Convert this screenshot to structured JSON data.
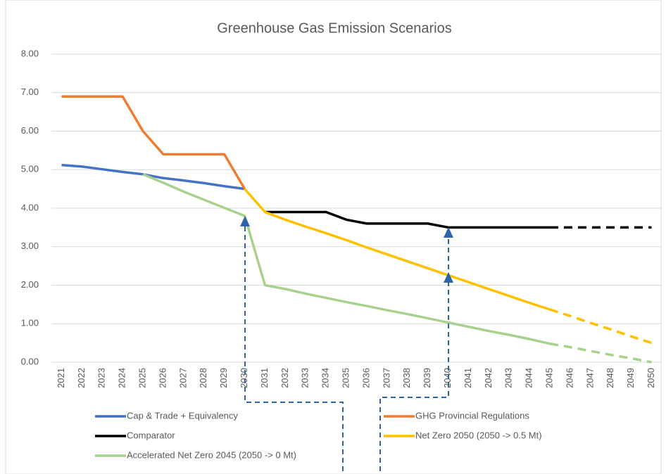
{
  "chart_data": {
    "type": "line",
    "title": "Greenhouse Gas Emission Scenarios",
    "categories": [
      "2021",
      "2022",
      "2023",
      "2024",
      "2025",
      "2026",
      "2027",
      "2028",
      "2029",
      "2030",
      "2031",
      "2032",
      "2033",
      "2034",
      "2035",
      "2036",
      "2037",
      "2038",
      "2039",
      "2040",
      "2041",
      "2042",
      "2043",
      "2044",
      "2045",
      "2046",
      "2047",
      "2048",
      "2049",
      "2050"
    ],
    "series": [
      {
        "name": "Cap & Trade + Equivalency",
        "color": "#4472c4",
        "values": [
          5.12,
          5.08,
          5.01,
          4.94,
          4.88,
          4.78,
          4.72,
          4.65,
          4.57,
          4.5,
          null,
          null,
          null,
          null,
          null,
          null,
          null,
          null,
          null,
          null,
          null,
          null,
          null,
          null,
          null,
          null,
          null,
          null,
          null,
          null
        ]
      },
      {
        "name": "GHG Provincial Regulations",
        "color": "#ed7d31",
        "values": [
          6.9,
          6.9,
          6.9,
          6.9,
          6.0,
          5.4,
          5.4,
          5.4,
          5.4,
          4.5,
          null,
          null,
          null,
          null,
          null,
          null,
          null,
          null,
          null,
          null,
          null,
          null,
          null,
          null,
          null,
          null,
          null,
          null,
          null,
          null
        ]
      },
      {
        "name": "Comparator",
        "color": "#000000",
        "values": [
          null,
          null,
          null,
          null,
          null,
          null,
          null,
          null,
          null,
          null,
          3.9,
          3.9,
          3.9,
          3.9,
          3.7,
          3.6,
          3.6,
          3.6,
          3.6,
          3.5,
          3.5,
          3.5,
          3.5,
          3.5,
          3.5,
          3.5,
          3.5,
          3.5,
          3.5,
          3.5
        ]
      },
      {
        "name": "Net Zero 2050 (2050 -> 0.5 Mt)",
        "color": "#ffc000",
        "values": [
          null,
          null,
          null,
          null,
          null,
          null,
          null,
          null,
          null,
          4.5,
          3.9,
          3.7,
          3.52,
          3.35,
          3.17,
          2.98,
          2.8,
          2.62,
          2.44,
          2.26,
          2.08,
          1.9,
          1.72,
          1.54,
          1.37,
          1.2,
          1.02,
          0.85,
          0.67,
          0.5
        ]
      },
      {
        "name": "Accelerated Net Zero 2045 (2050 -> 0 Mt)",
        "color": "#a9d18e",
        "values": [
          null,
          null,
          null,
          null,
          4.88,
          4.66,
          4.43,
          4.22,
          4.01,
          3.8,
          2.0,
          1.9,
          1.78,
          1.67,
          1.56,
          1.46,
          1.35,
          1.25,
          1.14,
          1.03,
          0.92,
          0.81,
          0.71,
          0.6,
          0.48,
          0.39,
          0.29,
          0.19,
          0.1,
          0.0
        ]
      }
    ],
    "dashed_from": "2045",
    "ylim": [
      0,
      8
    ],
    "yticks": [
      {
        "value": 0,
        "label": "0.00"
      },
      {
        "value": 1,
        "label": "1.00"
      },
      {
        "value": 2,
        "label": "2.00"
      },
      {
        "value": 3,
        "label": "3.00"
      },
      {
        "value": 4,
        "label": "4.00"
      },
      {
        "value": 5,
        "label": "5.00"
      },
      {
        "value": 6,
        "label": "6.00"
      },
      {
        "value": 7,
        "label": "7.00"
      },
      {
        "value": 8,
        "label": "8.00"
      }
    ],
    "grid": true,
    "legend": "bottom"
  }
}
